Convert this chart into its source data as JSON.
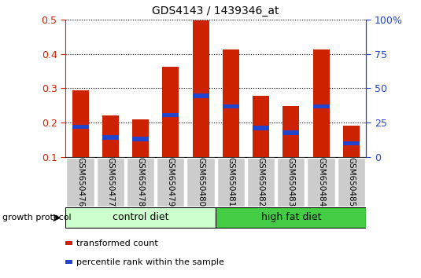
{
  "title": "GDS4143 / 1439346_at",
  "samples": [
    "GSM650476",
    "GSM650477",
    "GSM650478",
    "GSM650479",
    "GSM650480",
    "GSM650481",
    "GSM650482",
    "GSM650483",
    "GSM650484",
    "GSM650485"
  ],
  "transformed_count": [
    0.295,
    0.222,
    0.21,
    0.362,
    0.497,
    0.413,
    0.278,
    0.248,
    0.413,
    0.192
  ],
  "percentile_rank": [
    0.188,
    0.157,
    0.153,
    0.222,
    0.278,
    0.247,
    0.185,
    0.17,
    0.247,
    0.14
  ],
  "bar_color": "#cc2200",
  "percentile_color": "#2244cc",
  "bar_width": 0.55,
  "ylim": [
    0.1,
    0.5
  ],
  "yticks_left": [
    0.1,
    0.2,
    0.3,
    0.4,
    0.5
  ],
  "yticks_right": [
    0,
    25,
    50,
    75,
    100
  ],
  "groups": [
    {
      "label": "control diet",
      "indices": [
        0,
        1,
        2,
        3,
        4
      ],
      "color": "#ccffcc"
    },
    {
      "label": "high fat diet",
      "indices": [
        5,
        6,
        7,
        8,
        9
      ],
      "color": "#44cc44"
    }
  ],
  "group_label": "growth protocol",
  "label_area_color": "#cccccc",
  "grid_style": "dotted",
  "legend_items": [
    {
      "label": "transformed count",
      "color": "#cc2200"
    },
    {
      "label": "percentile rank within the sample",
      "color": "#2244cc"
    }
  ]
}
